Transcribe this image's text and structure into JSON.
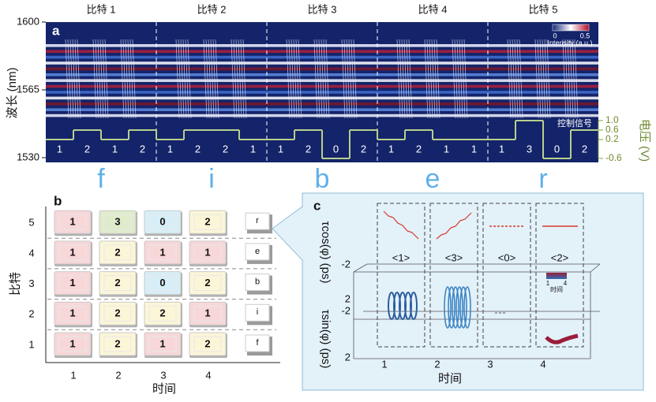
{
  "panel_a": {
    "label": "a",
    "bits": [
      "比特 1",
      "比特 2",
      "比特 3",
      "比特 4",
      "比特 5"
    ],
    "y_title": "波长 (nm)",
    "ylim": [
      1530,
      1600
    ],
    "yticks": [
      1530,
      1565,
      1600
    ],
    "y2_title": "电压 (V)",
    "y2lim": [
      -0.6,
      1.0
    ],
    "y2ticks": [
      -0.6,
      0.2,
      0.6,
      {
        "value": 1.0,
        "label": "1.0"
      }
    ],
    "control_label": "控制信号",
    "colorbar": {
      "title": "Intensity (a.u.)",
      "ticks": [
        0,
        0.5
      ]
    },
    "signal": [
      [
        {
          "level": 1,
          "voltage": 0.2
        },
        {
          "level": 2,
          "voltage": 0.6
        },
        {
          "level": 1,
          "voltage": 0.2
        },
        {
          "level": 2,
          "voltage": 0.6
        }
      ],
      [
        {
          "level": 1,
          "voltage": 0.2
        },
        {
          "level": 2,
          "voltage": 0.6
        },
        {
          "level": 2,
          "voltage": 0.6
        },
        {
          "level": 1,
          "voltage": 0.2
        }
      ],
      [
        {
          "level": 1,
          "voltage": 0.2
        },
        {
          "level": 2,
          "voltage": 0.6
        },
        {
          "level": 0,
          "voltage": -0.6
        },
        {
          "level": 2,
          "voltage": 0.6
        }
      ],
      [
        {
          "level": 1,
          "voltage": 0.2
        },
        {
          "level": 2,
          "voltage": 0.6
        },
        {
          "level": 1,
          "voltage": 0.2
        },
        {
          "level": 1,
          "voltage": 0.2
        }
      ],
      [
        {
          "level": 1,
          "voltage": 0.2
        },
        {
          "level": 3,
          "voltage": 1.0
        },
        {
          "level": 0,
          "voltage": -0.6
        },
        {
          "level": 2,
          "voltage": 0.6
        }
      ]
    ],
    "letters": [
      "f",
      "i",
      "b",
      "e",
      "r"
    ]
  },
  "panel_b": {
    "label": "b",
    "y_title": "比特",
    "x_title": "时间",
    "yticks": [
      1,
      2,
      3,
      4,
      5
    ],
    "xticks": [
      1,
      2,
      3,
      4
    ],
    "rows": [
      {
        "keys": [
          1,
          2,
          1,
          2
        ],
        "letter": "f"
      },
      {
        "keys": [
          1,
          2,
          2,
          1
        ],
        "letter": "i"
      },
      {
        "keys": [
          1,
          2,
          0,
          2
        ],
        "letter": "b"
      },
      {
        "keys": [
          1,
          2,
          1,
          1
        ],
        "letter": "e"
      },
      {
        "keys": [
          1,
          3,
          0,
          2
        ],
        "letter": "r"
      }
    ]
  },
  "panel_c": {
    "label": "c",
    "states": [
      "<1>",
      "<3>",
      "<0>",
      "<2>"
    ],
    "z_title": "τcos(φ) (ps)",
    "y_title": "τsin(φ) (ps)",
    "x_title": "时间",
    "zticks": [
      -2,
      2
    ],
    "yticks": [
      -2,
      2
    ],
    "xticks": [
      1,
      2,
      3,
      4
    ],
    "colorbar": {
      "title": "时间",
      "ticks": [
        1,
        4
      ]
    }
  }
}
